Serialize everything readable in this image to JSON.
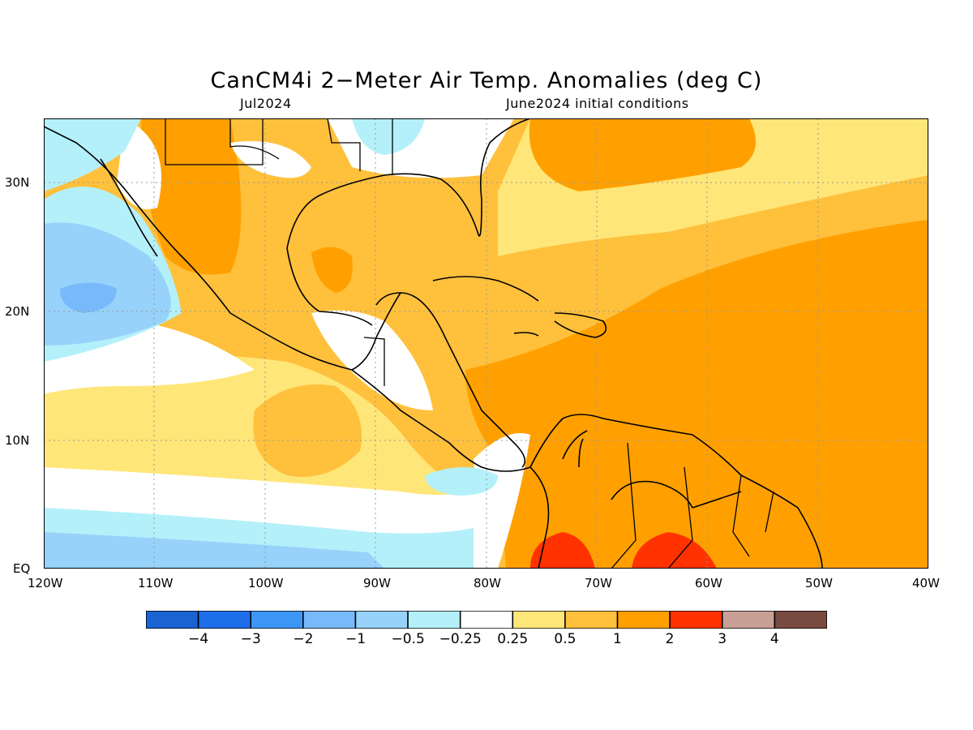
{
  "title": "CanCM4i 2−Meter Air Temp. Anomalies (deg C)",
  "subtitle_left": "Jul2024",
  "subtitle_right": "June2024 initial conditions",
  "y_axis": [
    "30N",
    "20N",
    "10N",
    "EQ"
  ],
  "x_axis": [
    "120W",
    "110W",
    "100W",
    "90W",
    "80W",
    "70W",
    "60W",
    "50W",
    "40W"
  ],
  "colorbar": {
    "colors": [
      "#1964d2",
      "#1e6eeb",
      "#3c96f5",
      "#78b9fa",
      "#96d2fa",
      "#b4f0fa",
      "#ffffff",
      "#ffe678",
      "#ffc03c",
      "#ffa000",
      "#ff3200",
      "#c8a096",
      "#784b41"
    ],
    "labels": [
      "−4",
      "−3",
      "−2",
      "−1",
      "−0.5",
      "−0.25",
      "0.25",
      "0.5",
      "1",
      "2",
      "3",
      "4"
    ]
  }
}
